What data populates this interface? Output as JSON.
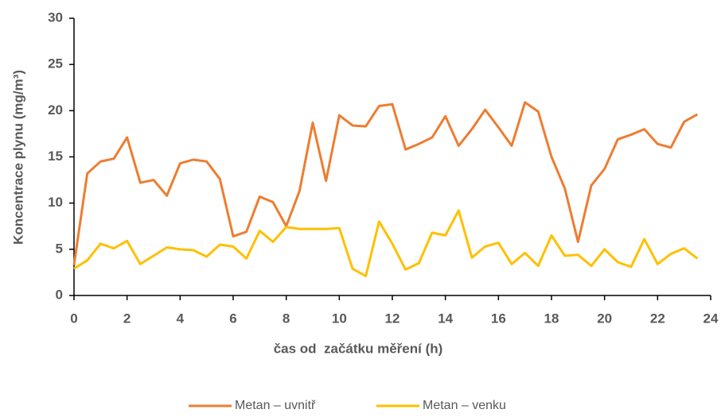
{
  "chart_data": {
    "type": "line",
    "x_label": "čas od  začátku měření (h)",
    "y_label": "Koncentrace plynu (mg/m³)",
    "x": [
      0,
      0.5,
      1,
      1.5,
      2,
      2.5,
      3,
      3.5,
      4,
      4.5,
      5,
      5.5,
      6,
      6.5,
      7,
      7.5,
      8,
      8.5,
      9,
      9.5,
      10,
      10.5,
      11,
      11.5,
      12,
      12.5,
      13,
      13.5,
      14,
      14.5,
      15,
      15.5,
      16,
      16.5,
      17,
      17.5,
      18,
      18.5,
      19,
      19.5,
      20,
      20.5,
      21,
      21.5,
      22,
      22.5,
      23,
      23.5
    ],
    "series": [
      {
        "name": "Metan – uvnitř",
        "color": "#ED7D31",
        "values": [
          3.3,
          13.2,
          14.5,
          14.8,
          17.1,
          12.2,
          12.5,
          10.8,
          14.3,
          14.7,
          14.5,
          12.6,
          6.4,
          6.9,
          10.7,
          10.1,
          7.5,
          11.3,
          18.7,
          12.4,
          19.5,
          18.4,
          18.3,
          20.5,
          20.7,
          15.8,
          16.4,
          17.1,
          19.4,
          16.2,
          18.0,
          20.1,
          18.2,
          16.2,
          20.9,
          19.9,
          15.0,
          11.6,
          5.8,
          11.9,
          13.7,
          16.9,
          17.4,
          18.0,
          16.4,
          16.0,
          18.8,
          19.6
        ]
      },
      {
        "name": "Metan – venku",
        "color": "#FFC000",
        "values": [
          2.9,
          3.8,
          5.6,
          5.1,
          5.9,
          3.4,
          4.3,
          5.2,
          5.0,
          4.9,
          4.2,
          5.5,
          5.3,
          4.0,
          7.0,
          5.8,
          7.4,
          7.2,
          7.2,
          7.2,
          7.3,
          2.9,
          2.1,
          8.0,
          5.6,
          2.8,
          3.5,
          6.8,
          6.5,
          9.2,
          4.1,
          5.3,
          5.7,
          3.4,
          4.6,
          3.2,
          6.5,
          4.3,
          4.4,
          3.2,
          5.0,
          3.6,
          3.1,
          6.1,
          3.4,
          4.5,
          5.1,
          4.0
        ]
      }
    ],
    "xlim": [
      0,
      24
    ],
    "xticks": [
      0,
      2,
      4,
      6,
      8,
      10,
      12,
      14,
      16,
      18,
      20,
      22,
      24
    ],
    "ylim": [
      0,
      30
    ],
    "yticks": [
      0,
      5,
      10,
      15,
      20,
      25,
      30
    ],
    "legend": "bottom"
  }
}
